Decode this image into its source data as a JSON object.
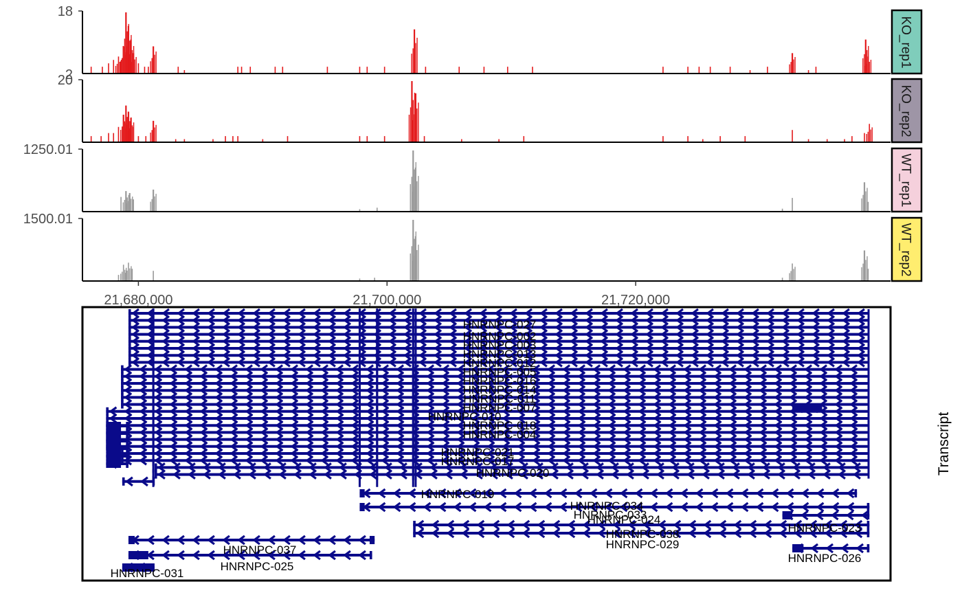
{
  "chart_data": {
    "type": "area",
    "x_axis": {
      "range": [
        21675500,
        21740500
      ],
      "ticks": [
        21680000,
        21700000,
        21720000
      ],
      "tick_labels": [
        "21,680,000",
        "21,700,000",
        "21,720,000"
      ]
    },
    "tracks": [
      {
        "name": "KO_rep1",
        "ymax": 18,
        "ymax_label": "18",
        "y_tick_label": "2",
        "strip_color": "#7fcdbb",
        "bar_color": "#e31a1c",
        "peaks": [
          [
            21676200,
            2
          ],
          [
            21677100,
            2
          ],
          [
            21677600,
            3
          ],
          [
            21678000,
            4
          ],
          [
            21678400,
            5
          ],
          [
            21678800,
            8
          ],
          [
            21679000,
            18
          ],
          [
            21679200,
            14
          ],
          [
            21679400,
            10
          ],
          [
            21679600,
            6
          ],
          [
            21680000,
            3
          ],
          [
            21680500,
            2
          ],
          [
            21680800,
            2
          ],
          [
            21681200,
            8
          ],
          [
            21683200,
            2
          ],
          [
            21683700,
            1
          ],
          [
            21688000,
            2
          ],
          [
            21688300,
            2
          ],
          [
            21689000,
            2
          ],
          [
            21691000,
            2
          ],
          [
            21691600,
            2
          ],
          [
            21695200,
            2
          ],
          [
            21697800,
            2
          ],
          [
            21698400,
            2
          ],
          [
            21699800,
            2
          ],
          [
            21702200,
            13
          ],
          [
            21703100,
            2
          ],
          [
            21705800,
            2
          ],
          [
            21707800,
            2
          ],
          [
            21709700,
            2
          ],
          [
            21711700,
            2
          ],
          [
            21722200,
            2
          ],
          [
            21724200,
            2
          ],
          [
            21725100,
            2
          ],
          [
            21726000,
            2
          ],
          [
            21727600,
            2
          ],
          [
            21729200,
            1
          ],
          [
            21730600,
            2
          ],
          [
            21732600,
            6
          ],
          [
            21733900,
            1
          ],
          [
            21734500,
            2
          ],
          [
            21738500,
            10
          ],
          [
            21738700,
            5
          ]
        ]
      },
      {
        "name": "KO_rep2",
        "ymax": 20,
        "ymax_label": "20",
        "y_tick_label": "",
        "strip_color": "#9e95a6",
        "bar_color": "#e31a1c",
        "peaks": [
          [
            21676200,
            2
          ],
          [
            21677000,
            2
          ],
          [
            21677600,
            3
          ],
          [
            21678000,
            3
          ],
          [
            21678400,
            5
          ],
          [
            21678800,
            9
          ],
          [
            21679000,
            12
          ],
          [
            21679200,
            10
          ],
          [
            21679400,
            8
          ],
          [
            21679600,
            5
          ],
          [
            21680000,
            2
          ],
          [
            21680600,
            2
          ],
          [
            21681200,
            7
          ],
          [
            21683000,
            1
          ],
          [
            21683700,
            1
          ],
          [
            21686000,
            1
          ],
          [
            21687000,
            2
          ],
          [
            21687600,
            2
          ],
          [
            21688000,
            2
          ],
          [
            21690000,
            1
          ],
          [
            21692000,
            2
          ],
          [
            21697800,
            2
          ],
          [
            21698400,
            2
          ],
          [
            21699800,
            2
          ],
          [
            21702000,
            20
          ],
          [
            21702300,
            16
          ],
          [
            21703000,
            2
          ],
          [
            21706000,
            1
          ],
          [
            21709000,
            1
          ],
          [
            21711000,
            2
          ],
          [
            21722200,
            2
          ],
          [
            21724200,
            2
          ],
          [
            21725400,
            1
          ],
          [
            21726800,
            2
          ],
          [
            21728800,
            2
          ],
          [
            21732600,
            4
          ],
          [
            21733900,
            1
          ],
          [
            21735400,
            1
          ],
          [
            21736800,
            1
          ],
          [
            21737400,
            2
          ],
          [
            21738400,
            3
          ],
          [
            21738800,
            6
          ]
        ]
      },
      {
        "name": "WT_rep1",
        "ymax": 1250.01,
        "ymax_label": "1250.01",
        "y_tick_label": "",
        "strip_color": "#f5d0dc",
        "bar_color": "#999999",
        "peaks": [
          [
            21678600,
            300
          ],
          [
            21679000,
            420
          ],
          [
            21679300,
            380
          ],
          [
            21679600,
            250
          ],
          [
            21681200,
            450
          ],
          [
            21697800,
            50
          ],
          [
            21699200,
            80
          ],
          [
            21702100,
            1250
          ],
          [
            21702300,
            900
          ],
          [
            21731800,
            60
          ],
          [
            21732600,
            280
          ],
          [
            21738400,
            600
          ],
          [
            21738700,
            200
          ]
        ]
      },
      {
        "name": "WT_rep2",
        "ymax": 1500.01,
        "ymax_label": "1500.01",
        "y_tick_label": "",
        "strip_color": "#ffed6f",
        "bar_color": "#999999",
        "peaks": [
          [
            21678400,
            150
          ],
          [
            21678800,
            400
          ],
          [
            21679200,
            450
          ],
          [
            21679500,
            300
          ],
          [
            21681200,
            250
          ],
          [
            21697800,
            60
          ],
          [
            21699000,
            80
          ],
          [
            21702100,
            1500
          ],
          [
            21702300,
            1100
          ],
          [
            21731800,
            80
          ],
          [
            21732600,
            430
          ],
          [
            21738400,
            750
          ],
          [
            21738700,
            300
          ]
        ]
      }
    ],
    "transcript_panel": {
      "label": "Transcript",
      "color": "#0a0a8a",
      "labels": [
        "HNRNPC-027",
        "HNRNPC-002",
        "HNRNPC-003",
        "HNRNPC-013",
        "HNRNPC-012",
        "HNRNPC-005",
        "HNRNPC-016",
        "HNRNPC-014",
        "HNRNPC-011",
        "HNRNPC-007",
        "HNRNPC-010",
        "HNRNPC-018",
        "HNRNPC-004",
        "HNRNPC-021",
        "HNRNPC-017",
        "HNRNPC-020",
        "HNRNPC-019",
        "HNRNPC-034",
        "HNRNPC-033",
        "HNRNPC-024",
        "HNRNPC-038",
        "HNRNPC-029",
        "HNRNPC-023",
        "HNRNPC-037",
        "HNRNPC-025",
        "HNRNPC-026",
        "HNRNPC-031"
      ]
    }
  }
}
